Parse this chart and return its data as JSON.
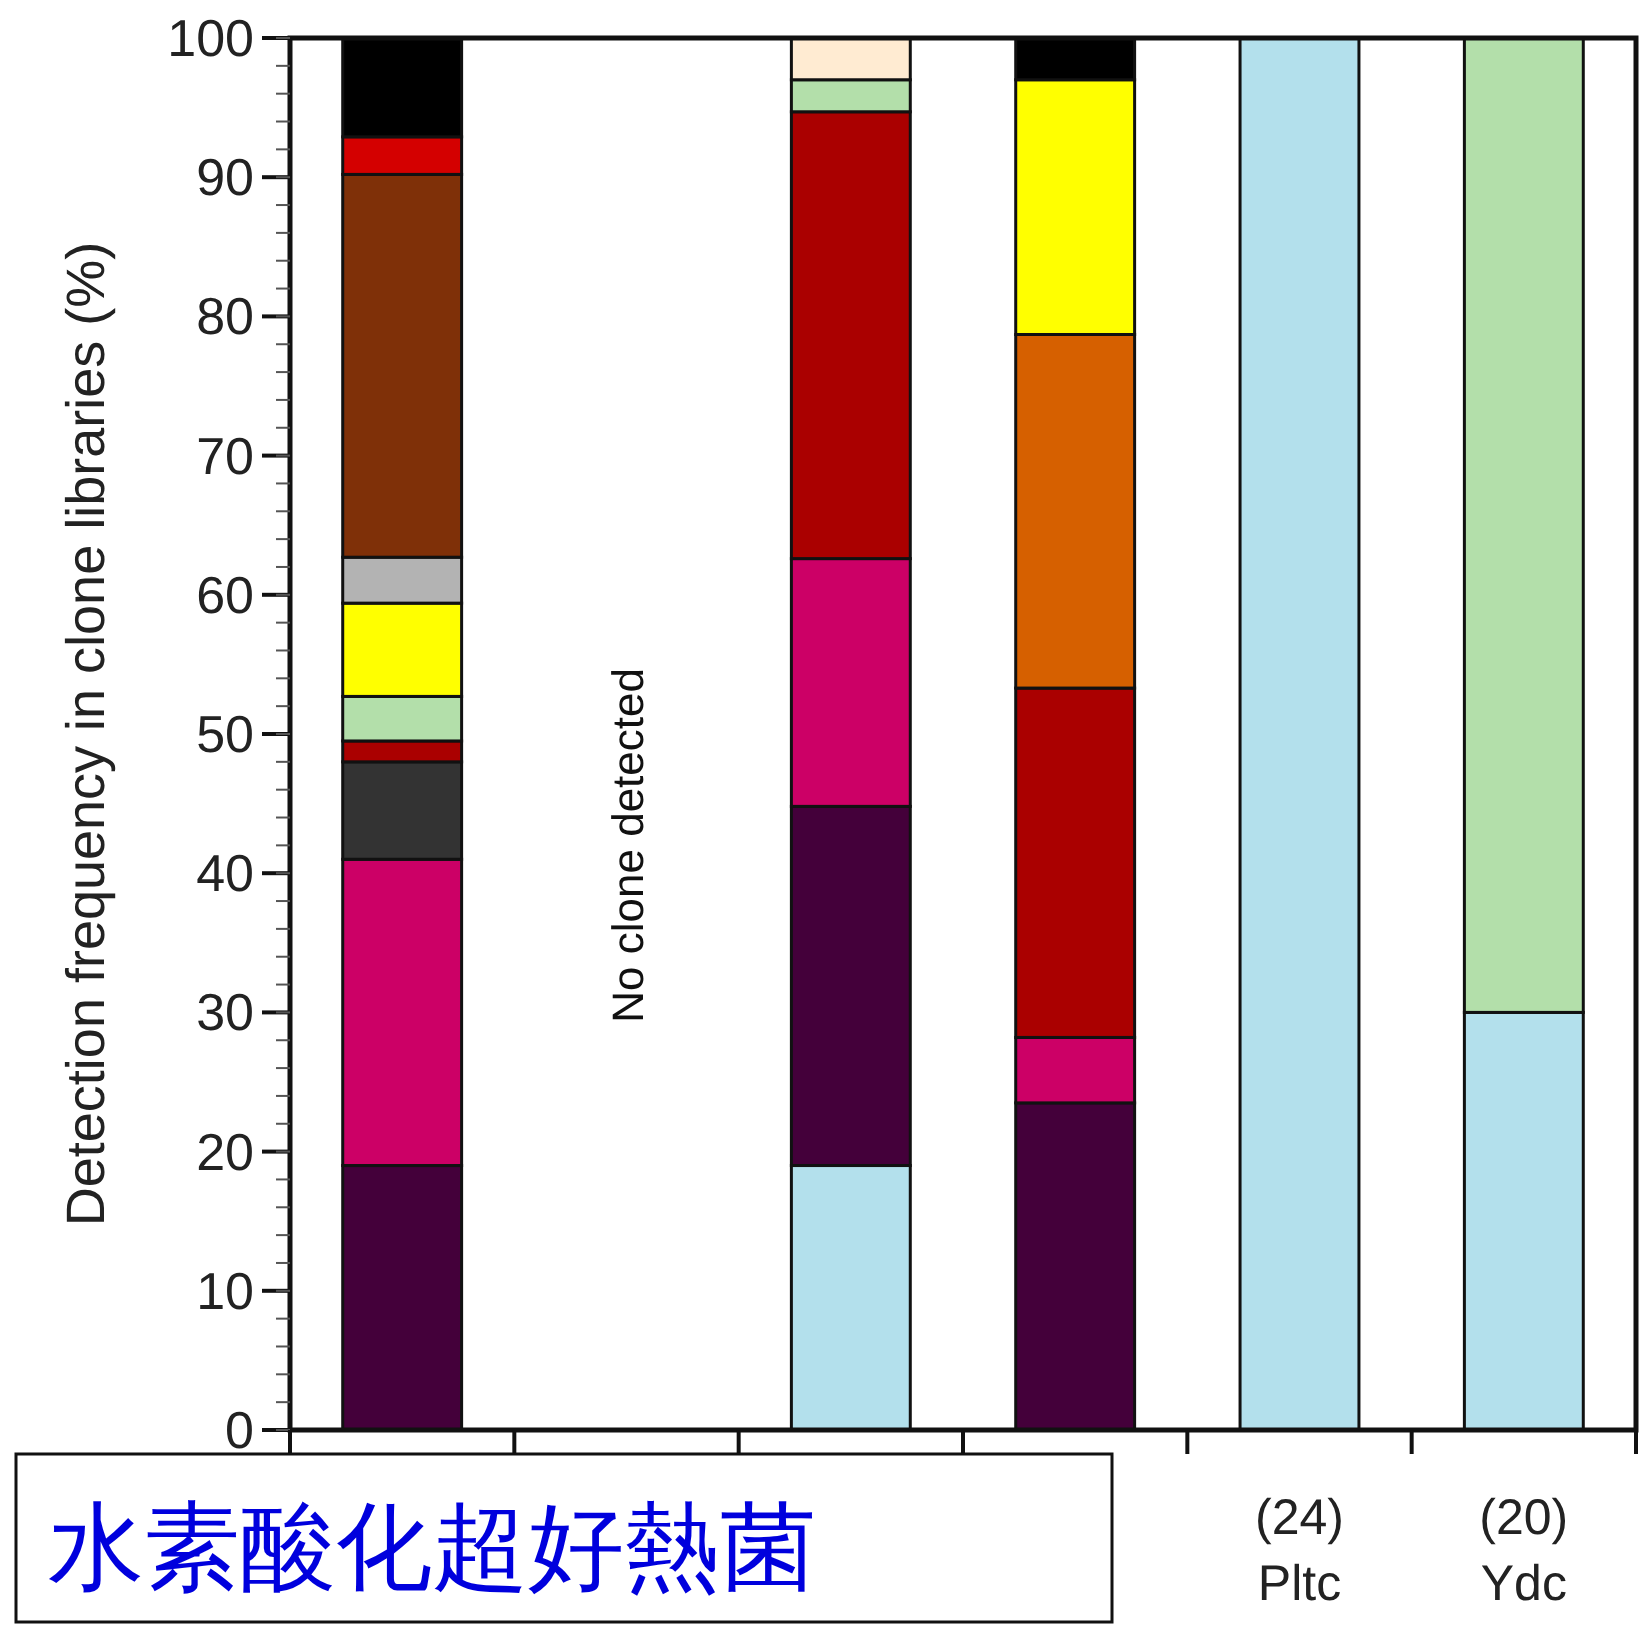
{
  "chart_data": {
    "type": "bar",
    "stacked": true,
    "ylabel": "Detection frequency in clone libraries (%)",
    "categories": [
      null,
      null,
      null,
      null,
      "(24)\nPltc",
      "(20)\nYdc"
    ],
    "ylim": [
      0,
      100
    ],
    "yticks": [
      0,
      10,
      20,
      30,
      40,
      50,
      60,
      70,
      80,
      90,
      100
    ],
    "series": [
      {
        "values": [
          19,
          null,
          19,
          23.5,
          100,
          30
        ],
        "colors": [
          "#44003a",
          null,
          "#b3e0ec",
          "#44003a",
          "#b3e0ec",
          "#b3e0ec"
        ]
      },
      {
        "values": [
          22,
          null,
          25.8,
          4.7,
          null,
          70
        ],
        "colors": [
          "#cc0066",
          null,
          "#44003a",
          "#cc0066",
          null,
          "#b3dfaa"
        ]
      },
      {
        "values": [
          7,
          null,
          17.8,
          25.1,
          null,
          null
        ],
        "colors": [
          "#333333",
          null,
          "#cc0066",
          "#aa0000",
          null,
          null
        ]
      },
      {
        "values": [
          1.5,
          null,
          32.1,
          25.4,
          null,
          null
        ],
        "colors": [
          "#aa0000",
          null,
          "#aa0000",
          "#d66000",
          null,
          null
        ]
      },
      {
        "values": [
          3.2,
          null,
          2.3,
          18.3,
          null,
          null
        ],
        "colors": [
          "#b3dfaa",
          null,
          "#b3dfaa",
          "#ffff00",
          null,
          null
        ]
      },
      {
        "values": [
          6.7,
          null,
          3.0,
          3.0,
          null,
          null
        ],
        "colors": [
          "#ffff00",
          null,
          "#ffebd2",
          "#000000",
          null,
          null
        ]
      },
      {
        "values": [
          3.3,
          null,
          null,
          null,
          null,
          null
        ],
        "colors": [
          "#b3b3b3",
          null,
          null,
          null,
          null,
          null
        ]
      },
      {
        "values": [
          27.5,
          null,
          null,
          null,
          null,
          null
        ],
        "colors": [
          "#7f3008",
          null,
          null,
          null,
          null,
          null
        ]
      },
      {
        "values": [
          2.7,
          null,
          null,
          null,
          null,
          null
        ],
        "colors": [
          "#d40000",
          null,
          null,
          null,
          null,
          null
        ]
      },
      {
        "values": [
          7.1,
          null,
          null,
          null,
          null,
          null
        ],
        "colors": [
          "#000000",
          null,
          null,
          null,
          null,
          null
        ]
      }
    ],
    "annotations": [
      "No clone detected",
      "水素酸化超好熱菌"
    ]
  }
}
